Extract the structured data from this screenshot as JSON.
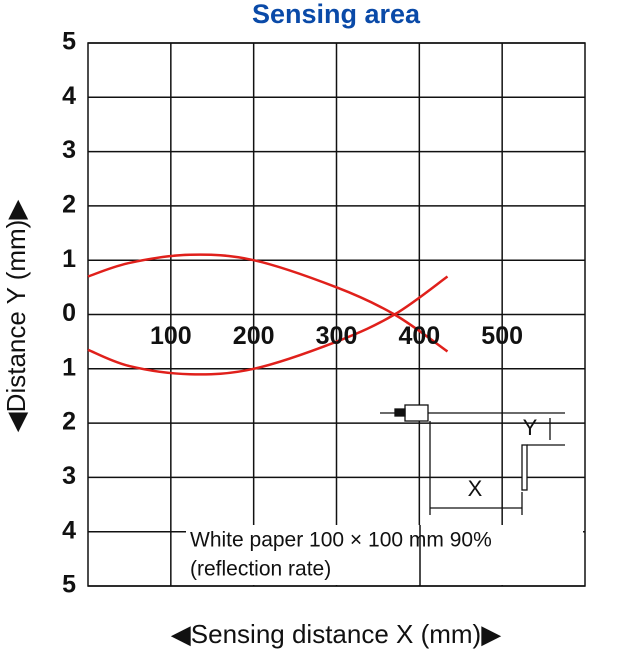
{
  "chart_data": {
    "type": "line",
    "title": "Sensing area",
    "x_label": "◀Sensing distance X (mm)▶",
    "y_label": "◀Distance Y (mm)▶",
    "annotations": [
      "White paper 100 × 100 mm 90%",
      "(reflection rate)"
    ],
    "inset_labels": [
      "X",
      "Y"
    ],
    "xlim": [
      0,
      600
    ],
    "ylim": [
      -5,
      5
    ],
    "xticks": [
      100,
      200,
      300,
      400,
      500
    ],
    "yticks": [
      {
        "value": 5,
        "label": "5"
      },
      4,
      3,
      2,
      1,
      0,
      {
        "value": -1,
        "label": "1"
      },
      {
        "value": -2,
        "label": "2"
      },
      {
        "value": -3,
        "label": "3"
      },
      {
        "value": -4,
        "label": "4"
      },
      {
        "value": -5,
        "label": "5"
      }
    ],
    "grid": true,
    "x": [
      0,
      50,
      123,
      200,
      300,
      370,
      434
    ],
    "series": [
      {
        "color": "#e0201b",
        "values": [
          0.7,
          0.95,
          1.1,
          1.0,
          0.5,
          0,
          -0.68
        ]
      },
      {
        "color": "#e0201b",
        "values": [
          -0.65,
          -0.95,
          -1.1,
          -1.0,
          -0.5,
          0,
          0.7
        ]
      }
    ]
  }
}
